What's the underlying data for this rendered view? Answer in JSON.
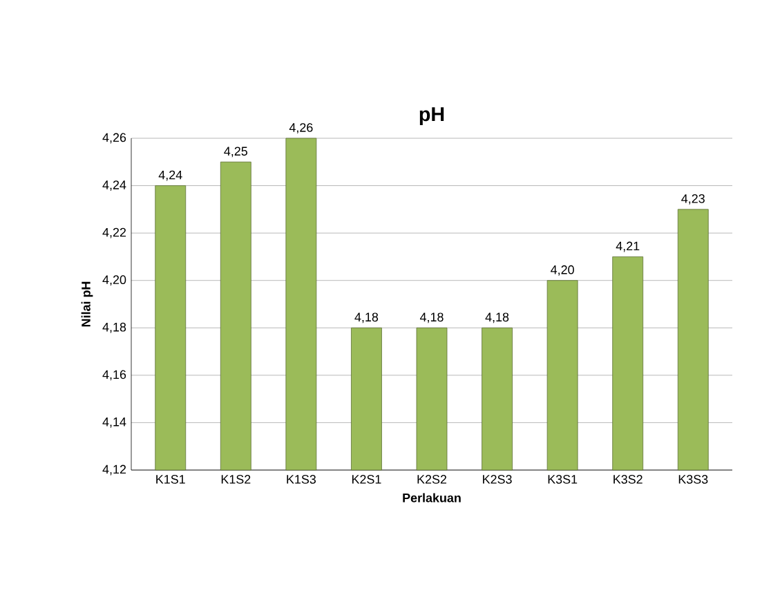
{
  "chart_data": {
    "type": "bar",
    "title": "pH",
    "xlabel": "Perlakuan",
    "ylabel": "Nilai pH",
    "categories": [
      "K1S1",
      "K1S2",
      "K1S3",
      "K2S1",
      "K2S2",
      "K2S3",
      "K3S1",
      "K3S2",
      "K3S3"
    ],
    "values": [
      4.24,
      4.25,
      4.26,
      4.18,
      4.18,
      4.18,
      4.2,
      4.21,
      4.23
    ],
    "value_labels": [
      "4,24",
      "4,25",
      "4,26",
      "4,18",
      "4,18",
      "4,18",
      "4,20",
      "4,21",
      "4,23"
    ],
    "color": "#9bbb59",
    "ylim": [
      4.12,
      4.26
    ],
    "yticks": [
      {
        "value": 4.12,
        "label": "4,12"
      },
      {
        "value": 4.14,
        "label": "4,14"
      },
      {
        "value": 4.16,
        "label": "4,16"
      },
      {
        "value": 4.18,
        "label": "4,18"
      },
      {
        "value": 4.2,
        "label": "4,20"
      },
      {
        "value": 4.22,
        "label": "4,22"
      },
      {
        "value": 4.24,
        "label": "4,24"
      },
      {
        "value": 4.26,
        "label": "4,26"
      }
    ],
    "grid": "y"
  }
}
